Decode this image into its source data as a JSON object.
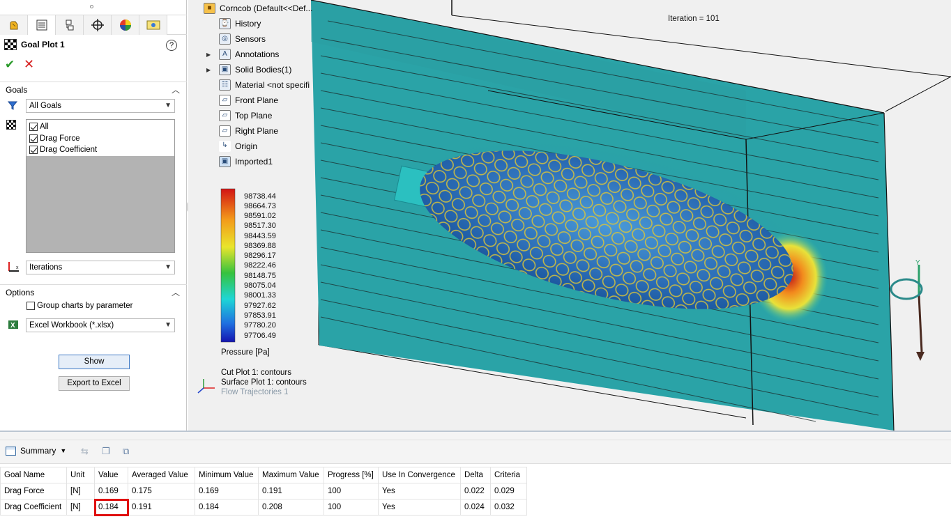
{
  "property_manager": {
    "tab_icons": [
      "feature-manager-icon",
      "property-manager-icon",
      "configuration-manager-icon",
      "dimxpert-icon",
      "display-manager-icon",
      "flow-simulation-icon"
    ],
    "title": "Goal Plot 1",
    "help_symbol": "?",
    "ok_symbol": "✔",
    "cancel_symbol": "✕",
    "goals_section": {
      "heading": "Goals",
      "filter_value": "All Goals",
      "items": [
        {
          "label": "All",
          "checked": true
        },
        {
          "label": "Drag Force",
          "checked": true
        },
        {
          "label": "Drag Coefficient",
          "checked": true
        }
      ],
      "x_axis_value": "Iterations"
    },
    "options_section": {
      "heading": "Options",
      "group_charts_label": "Group charts by parameter",
      "group_charts_checked": false,
      "export_format": "Excel Workbook (*.xlsx)"
    },
    "show_button": "Show",
    "export_button": "Export to Excel"
  },
  "viewport": {
    "iteration_text": "Iteration = 101",
    "tree": {
      "root": "Corncob  (Default<<Def...",
      "items": [
        {
          "label": "History",
          "icon": "history-icon",
          "expandable": false
        },
        {
          "label": "Sensors",
          "icon": "sensors-icon",
          "expandable": false
        },
        {
          "label": "Annotations",
          "icon": "annotations-icon",
          "expandable": true
        },
        {
          "label": "Solid Bodies(1)",
          "icon": "solid-bodies-icon",
          "expandable": true
        },
        {
          "label": "Material <not specifi",
          "icon": "material-icon",
          "expandable": false
        },
        {
          "label": "Front Plane",
          "icon": "plane-icon",
          "expandable": false
        },
        {
          "label": "Top Plane",
          "icon": "plane-icon",
          "expandable": false
        },
        {
          "label": "Right Plane",
          "icon": "plane-icon",
          "expandable": false
        },
        {
          "label": "Origin",
          "icon": "origin-icon",
          "expandable": false
        },
        {
          "label": "Imported1",
          "icon": "imported-body-icon",
          "expandable": false
        }
      ]
    },
    "legend": {
      "values": [
        "98738.44",
        "98664.73",
        "98591.02",
        "98517.30",
        "98443.59",
        "98369.88",
        "98296.17",
        "98222.46",
        "98148.75",
        "98075.04",
        "98001.33",
        "97927.62",
        "97853.91",
        "97780.20",
        "97706.49"
      ],
      "title": "Pressure [Pa]"
    },
    "plot_labels": [
      "Cut Plot 1: contours",
      "Surface Plot 1: contours",
      "Flow Trajectories 1"
    ]
  },
  "summary": {
    "dropdown_label": "Summary",
    "columns": [
      "Goal Name",
      "Unit",
      "Value",
      "Averaged Value",
      "Minimum Value",
      "Maximum Value",
      "Progress [%]",
      "Use In Convergence",
      "Delta",
      "Criteria"
    ],
    "rows": [
      [
        "Drag Force",
        "[N]",
        "0.169",
        "0.175",
        "0.169",
        "0.191",
        "100",
        "Yes",
        "0.022",
        "0.029"
      ],
      [
        "Drag Coefficient",
        "[N]",
        "0.184",
        "0.191",
        "0.184",
        "0.208",
        "100",
        "Yes",
        "0.024",
        "0.032"
      ]
    ],
    "highlight_color": "#e01010"
  }
}
